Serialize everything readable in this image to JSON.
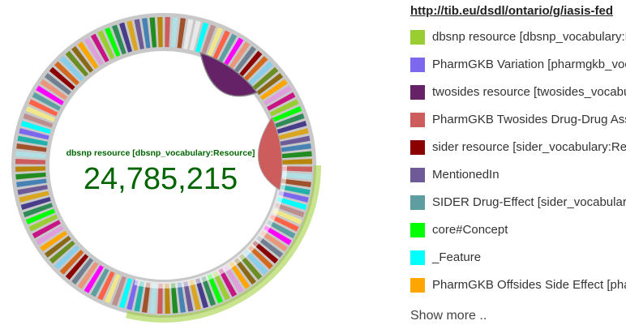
{
  "graph_link": "http://tib.eu/dsdl/ontario/g/iasis-fed",
  "center": {
    "label": "dbsnp resource [dbsnp_vocabulary:Resource]",
    "value": "24,785,215",
    "color": "#006400"
  },
  "legend": {
    "items": [
      {
        "label": "dbsnp resource [dbsnp_vocabulary:Resource]",
        "color": "#9ACD32"
      },
      {
        "label": "PharmGKB Variation [pharmgkb_vocabulary:Variation]",
        "color": "#7B68EE"
      },
      {
        "label": "twosides resource [twosides_vocabulary:Resource]",
        "color": "#662266"
      },
      {
        "label": "PharmGKB Twosides Drug-Drug Association",
        "color": "#CD5C5C"
      },
      {
        "label": "sider resource [sider_vocabulary:Resource]",
        "color": "#8B0000"
      },
      {
        "label": "MentionedIn",
        "color": "#6E5A96"
      },
      {
        "label": "SIDER Drug-Effect [sider_vocabulary:Drug-Effect]",
        "color": "#5F9EA0"
      },
      {
        "label": "core#Concept",
        "color": "#00FF00"
      },
      {
        "label": "_Feature",
        "color": "#00FFFF"
      },
      {
        "label": "PharmGKB Offsides Side Effect [pharmgkb_vocabulary:Offsides]",
        "color": "#FFA500"
      }
    ],
    "show_more": "Show more .."
  },
  "ring": {
    "outer_color": "#C8C8C8",
    "selected_color": "#9ACD32",
    "segment_palette": [
      "#9ACD32",
      "#7B68EE",
      "#8B6914",
      "#CD5C5C",
      "#8B0000",
      "#6E5A96",
      "#5F9EA0",
      "#00FF00",
      "#00FFFF",
      "#FFA500",
      "#B0E0E6",
      "#D2691E",
      "#4682B4",
      "#FF00FF",
      "#2E8B57",
      "#BC8F8F",
      "#DDA0DD",
      "#A0522D",
      "#87CEEB",
      "#228B22",
      "#E9967A",
      "#483D8B",
      "#F0E68C",
      "#C71585",
      "#20B2AA",
      "#6B8E23",
      "#B8860B",
      "#708090",
      "#DAA520",
      "#FF6347"
    ]
  }
}
